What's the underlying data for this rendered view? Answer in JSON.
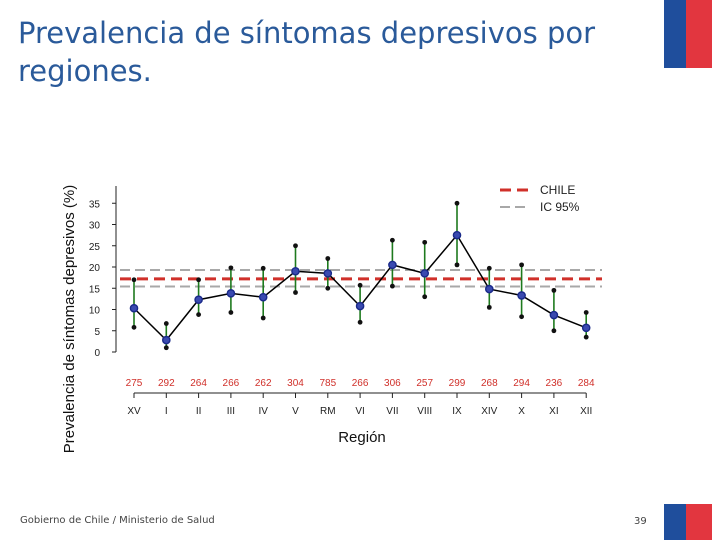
{
  "slide": {
    "title": "Prevalencia de síntomas depresivos por regiones.",
    "footer": "Gobierno de Chile / Ministerio de Salud",
    "page_number": "39"
  },
  "colors": {
    "title": "#2a5a9a",
    "chile_line": "#d0302a",
    "ci_line": "#a8a8a8",
    "error_bar": "#1e7a1e",
    "point": "#1a2a8a",
    "series_line": "#000000",
    "sample_size": "#d0302a",
    "flag_blue": "#1f4e9c",
    "flag_red": "#e2363f"
  },
  "chart_data": {
    "type": "line",
    "title": "",
    "xlabel": "Región",
    "ylabel": "Prevalencia de síntomas depresivos (%)",
    "ylim": [
      0,
      37
    ],
    "yticks": [
      0,
      5,
      10,
      15,
      20,
      25,
      30,
      35
    ],
    "categories": [
      "XV",
      "I",
      "II",
      "III",
      "IV",
      "V",
      "RM",
      "VI",
      "VII",
      "VIII",
      "IX",
      "XIV",
      "X",
      "XI",
      "XII"
    ],
    "sample_sizes": [
      "275",
      "292",
      "264",
      "266",
      "262",
      "304",
      "785",
      "266",
      "306",
      "257",
      "299",
      "268",
      "294",
      "236",
      "284"
    ],
    "series": [
      {
        "name": "Prevalencia",
        "values": [
          10.3,
          2.8,
          12.3,
          13.8,
          12.9,
          19.0,
          18.5,
          10.8,
          20.5,
          18.5,
          27.5,
          14.8,
          13.3,
          8.7,
          5.7
        ],
        "ci_lower": [
          5.8,
          1.0,
          8.8,
          9.3,
          8.0,
          14.0,
          15.0,
          7.0,
          15.5,
          13.0,
          20.5,
          10.5,
          8.3,
          5.0,
          3.5
        ],
        "ci_upper": [
          17.0,
          6.7,
          17.0,
          19.8,
          19.7,
          25.0,
          22.0,
          15.7,
          26.3,
          25.8,
          35.0,
          19.7,
          20.5,
          14.5,
          9.3
        ]
      }
    ],
    "reference_lines": [
      {
        "name": "CHILE",
        "value": 17.2,
        "style": "dashed",
        "color": "#d0302a"
      },
      {
        "name": "IC 95%",
        "value": 19.3,
        "style": "dashed",
        "color": "#a8a8a8"
      },
      {
        "name": "IC 95%",
        "value": 15.4,
        "style": "dashed",
        "color": "#a8a8a8"
      }
    ],
    "legend": [
      "CHILE",
      "IC 95%"
    ],
    "legend_position": "top-right",
    "grid": false
  }
}
